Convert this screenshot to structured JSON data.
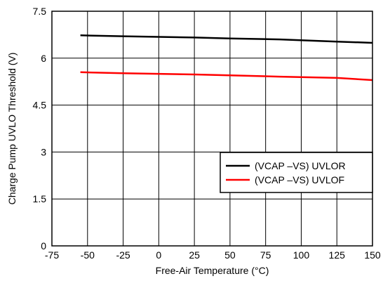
{
  "chart_data": {
    "type": "line",
    "xlabel": "Free-Air Temperature (°C)",
    "ylabel": "Charge Pump UVLO Threshold (V)",
    "xlim": [
      -75,
      150
    ],
    "ylim": [
      0,
      7.5
    ],
    "x_ticks": [
      -75,
      -50,
      -25,
      0,
      25,
      50,
      75,
      100,
      125,
      150
    ],
    "y_ticks": [
      0,
      1.5,
      3,
      4.5,
      6,
      7.5
    ],
    "x_tick_labels": [
      "-75",
      "-50",
      "-25",
      "0",
      "25",
      "50",
      "75",
      "100",
      "125",
      "150"
    ],
    "y_tick_labels": [
      "0",
      "1.5",
      "3",
      "4.5",
      "6",
      "7.5"
    ],
    "grid": true,
    "legend_position": "lower-right",
    "series": [
      {
        "name": "(VCAP  –VS) UVLOR",
        "color": "#000000",
        "x": [
          -55,
          -25,
          0,
          25,
          50,
          85,
          125,
          150
        ],
        "y": [
          6.73,
          6.7,
          6.68,
          6.66,
          6.63,
          6.6,
          6.53,
          6.49
        ]
      },
      {
        "name": "(VCAP  –VS) UVLOF",
        "color": "#ff0000",
        "x": [
          -55,
          -25,
          0,
          25,
          50,
          85,
          125,
          150
        ],
        "y": [
          5.55,
          5.52,
          5.5,
          5.48,
          5.45,
          5.41,
          5.37,
          5.3
        ]
      }
    ]
  }
}
